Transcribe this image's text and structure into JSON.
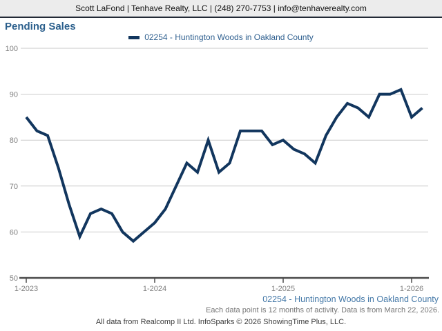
{
  "header": {
    "contact": "Scott LaFond | Tenhave Realty, LLC | (248) 270-7753 | info@tenhaverealty.com"
  },
  "title": "Pending Sales",
  "legend": {
    "label": "02254 - Huntington Woods in Oakland County"
  },
  "colors": {
    "line": "#12365e",
    "title_text": "#2b5f8c",
    "legend_text": "#2e5f8f",
    "station_text": "#4579a8",
    "axis": "#4a4a4a",
    "gridline": "#c9c9c9",
    "tick_label": "#7f7f7f"
  },
  "chart_data": {
    "type": "line",
    "title": "Pending Sales",
    "x": [
      "1-2023",
      "2-2023",
      "3-2023",
      "4-2023",
      "5-2023",
      "6-2023",
      "7-2023",
      "8-2023",
      "9-2023",
      "10-2023",
      "11-2023",
      "12-2023",
      "1-2024",
      "2-2024",
      "3-2024",
      "4-2024",
      "5-2024",
      "6-2024",
      "7-2024",
      "8-2024",
      "9-2024",
      "10-2024",
      "11-2024",
      "12-2024",
      "1-2025",
      "2-2025",
      "3-2025",
      "4-2025",
      "5-2025",
      "6-2025",
      "7-2025",
      "8-2025",
      "9-2025",
      "10-2025",
      "11-2025",
      "12-2025",
      "1-2026",
      "2-2026"
    ],
    "series": [
      {
        "name": "02254 - Huntington Woods in Oakland County",
        "color": "#12365e",
        "values": [
          85,
          82,
          81,
          74,
          66,
          59,
          64,
          65,
          64,
          60,
          58,
          60,
          62,
          65,
          70,
          75,
          73,
          80,
          73,
          75,
          82,
          82,
          82,
          79,
          80,
          78,
          77,
          75,
          81,
          85,
          88,
          87,
          85,
          90,
          90,
          91,
          85,
          87
        ]
      }
    ],
    "xlabel": "",
    "ylabel": "",
    "ylim": [
      50,
      100
    ],
    "yticks": [
      50,
      60,
      70,
      80,
      90,
      100
    ],
    "x_tick_labels": [
      "1-2023",
      "1-2024",
      "1-2025",
      "1-2026"
    ],
    "x_tick_indices": [
      0,
      12,
      24,
      36
    ],
    "grid": "horizontal",
    "legend_position": "top-center"
  },
  "footer": {
    "station": "02254 - Huntington Woods in Oakland County",
    "note": "Each data point is 12 months of activity. Data is from March 22, 2026.",
    "attribution": "All data from Realcomp II Ltd. InfoSparks © 2026 ShowingTime Plus, LLC."
  }
}
